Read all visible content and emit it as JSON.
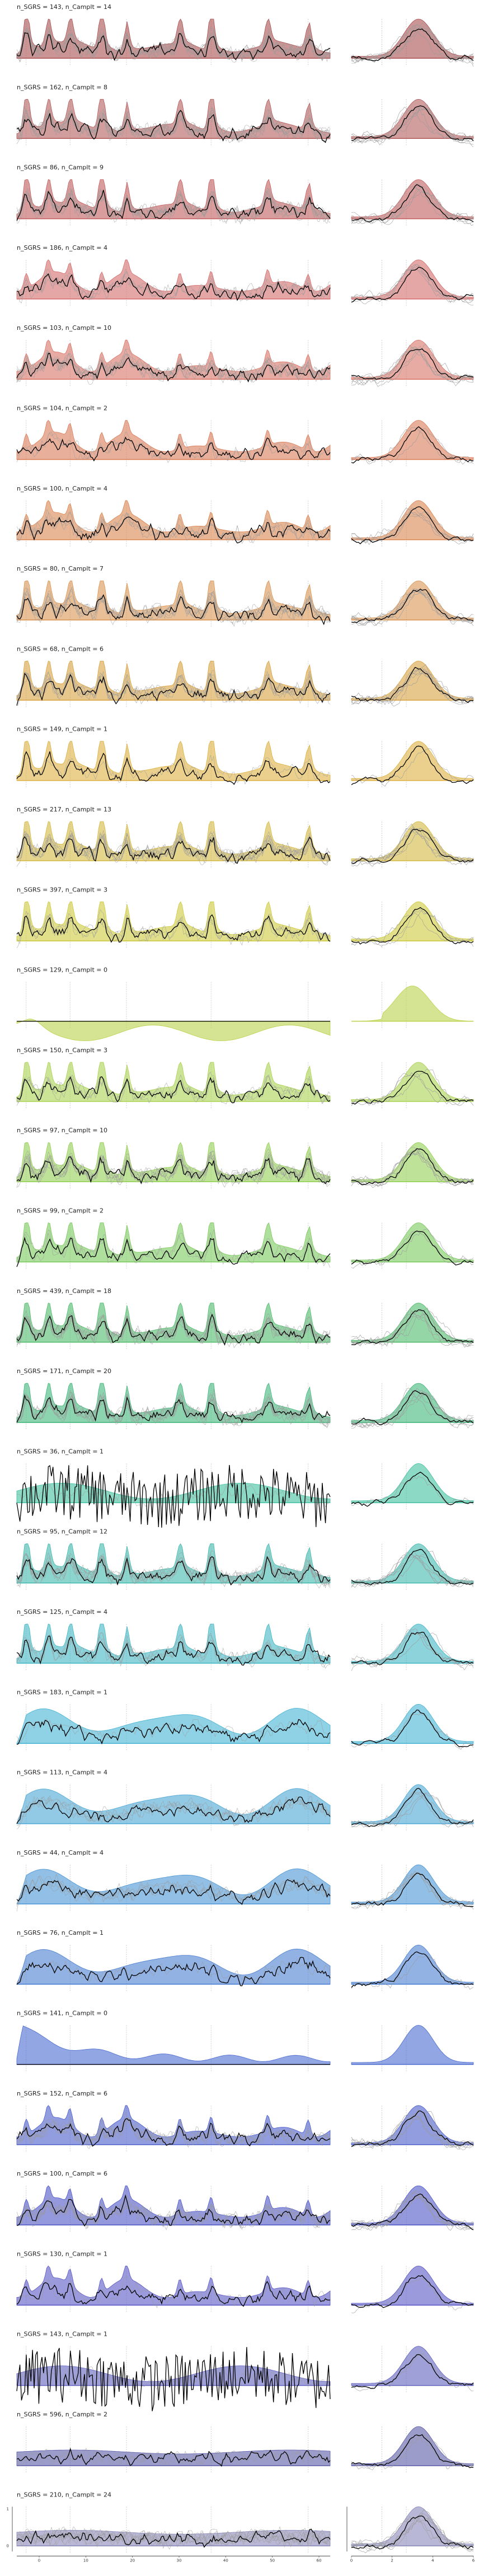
{
  "chart_data": {
    "type": "line",
    "title": "",
    "xlabel": "",
    "ylabel": "",
    "x_ticks_main": [
      "0",
      "10",
      "20",
      "30",
      "40",
      "50",
      "60"
    ],
    "x_ticks_right": [
      "0",
      "2",
      "4",
      "6"
    ],
    "y_ticks": [
      "1",
      "0"
    ],
    "panels": [
      {
        "label": "n_SGRS = 143, n_Camplt = 14",
        "n_sgrs": 143,
        "n_camplt": 14,
        "color": "#a94f4f",
        "profile": "peaks"
      },
      {
        "label": "n_SGRS = 162, n_Camplt = 8",
        "n_sgrs": 162,
        "n_camplt": 8,
        "color": "#b45b5b",
        "profile": "peaks"
      },
      {
        "label": "n_SGRS = 86, n_Camplt = 9",
        "n_sgrs": 86,
        "n_camplt": 9,
        "color": "#c25b5b",
        "profile": "peaks"
      },
      {
        "label": "n_SGRS = 186, n_Camplt = 4",
        "n_sgrs": 186,
        "n_camplt": 4,
        "color": "#d36b6b",
        "profile": "humps"
      },
      {
        "label": "n_SGRS = 103, n_Camplt = 10",
        "n_sgrs": 103,
        "n_camplt": 10,
        "color": "#d87366",
        "profile": "humps"
      },
      {
        "label": "n_SGRS = 104, n_Camplt = 2",
        "n_sgrs": 104,
        "n_camplt": 2,
        "color": "#d97a56",
        "profile": "humps"
      },
      {
        "label": "n_SGRS = 100, n_Camplt = 4",
        "n_sgrs": 100,
        "n_camplt": 4,
        "color": "#d9834f",
        "profile": "humps"
      },
      {
        "label": "n_SGRS = 80, n_Camplt = 7",
        "n_sgrs": 80,
        "n_camplt": 7,
        "color": "#d99452",
        "profile": "peaks"
      },
      {
        "label": "n_SGRS = 68, n_Camplt = 6",
        "n_sgrs": 68,
        "n_camplt": 6,
        "color": "#d9a240",
        "profile": "peaks"
      },
      {
        "label": "n_SGRS = 149, n_Camplt = 1",
        "n_sgrs": 149,
        "n_camplt": 1,
        "color": "#dcb040",
        "profile": "peaks"
      },
      {
        "label": "n_SGRS = 217, n_Camplt = 13",
        "n_sgrs": 217,
        "n_camplt": 13,
        "color": "#d4b840",
        "profile": "peaks"
      },
      {
        "label": "n_SGRS = 397, n_Camplt = 3",
        "n_sgrs": 397,
        "n_camplt": 3,
        "color": "#cdc93c",
        "profile": "peaks"
      },
      {
        "label": "n_SGRS = 129, n_Camplt = 0",
        "n_sgrs": 129,
        "n_camplt": 0,
        "color": "#b9d24a",
        "profile": "dip"
      },
      {
        "label": "n_SGRS = 150, n_Camplt = 3",
        "n_sgrs": 150,
        "n_camplt": 3,
        "color": "#a9d24f",
        "profile": "peaks"
      },
      {
        "label": "n_SGRS = 97, n_Camplt = 10",
        "n_sgrs": 97,
        "n_camplt": 10,
        "color": "#92cf52",
        "profile": "peaks"
      },
      {
        "label": "n_SGRS = 99, n_Camplt = 2",
        "n_sgrs": 99,
        "n_camplt": 2,
        "color": "#78c95a",
        "profile": "peaks"
      },
      {
        "label": "n_SGRS = 439, n_Camplt = 18",
        "n_sgrs": 439,
        "n_camplt": 18,
        "color": "#4fba6a",
        "profile": "peaks"
      },
      {
        "label": "n_SGRS = 171, n_Camplt = 20",
        "n_sgrs": 171,
        "n_camplt": 20,
        "color": "#3fb57a",
        "profile": "peaks"
      },
      {
        "label": "n_SGRS = 36, n_Camplt = 1",
        "n_sgrs": 36,
        "n_camplt": 1,
        "color": "#3fc0a0",
        "profile": "noise"
      },
      {
        "label": "n_SGRS = 95, n_Camplt = 12",
        "n_sgrs": 95,
        "n_camplt": 12,
        "color": "#3fb8ad",
        "profile": "peaks"
      },
      {
        "label": "n_SGRS = 125, n_Camplt = 4",
        "n_sgrs": 125,
        "n_camplt": 4,
        "color": "#3fb6c3",
        "profile": "peaks"
      },
      {
        "label": "n_SGRS = 183, n_Camplt = 1",
        "n_sgrs": 183,
        "n_camplt": 1,
        "color": "#45b3d4",
        "profile": "plateau"
      },
      {
        "label": "n_SGRS = 113, n_Camplt = 4",
        "n_sgrs": 113,
        "n_camplt": 4,
        "color": "#4aa6d6",
        "profile": "plateau"
      },
      {
        "label": "n_SGRS = 44, n_Camplt = 4",
        "n_sgrs": 44,
        "n_camplt": 4,
        "color": "#4a94d4",
        "profile": "plateau"
      },
      {
        "label": "n_SGRS = 76, n_Camplt = 1",
        "n_sgrs": 76,
        "n_camplt": 1,
        "color": "#4a7ed0",
        "profile": "plateau"
      },
      {
        "label": "n_SGRS = 141, n_Camplt = 0",
        "n_sgrs": 141,
        "n_camplt": 0,
        "color": "#4a6ad0",
        "profile": "decay"
      },
      {
        "label": "n_SGRS = 152, n_Camplt = 6",
        "n_sgrs": 152,
        "n_camplt": 6,
        "color": "#4a5ccc",
        "profile": "humps"
      },
      {
        "label": "n_SGRS = 100, n_Camplt = 6",
        "n_sgrs": 100,
        "n_camplt": 6,
        "color": "#4c54c6",
        "profile": "humps"
      },
      {
        "label": "n_SGRS = 130, n_Camplt = 1",
        "n_sgrs": 130,
        "n_camplt": 1,
        "color": "#5856c4",
        "profile": "humps"
      },
      {
        "label": "n_SGRS = 143, n_Camplt = 1",
        "n_sgrs": 143,
        "n_camplt": 1,
        "color": "#6060c0",
        "profile": "noise"
      },
      {
        "label": "n_SGRS = 596, n_Camplt = 2",
        "n_sgrs": 596,
        "n_camplt": 2,
        "color": "#5a5aa8",
        "profile": "flat"
      },
      {
        "label": "n_SGRS = 210, n_Camplt = 24",
        "n_sgrs": 210,
        "n_camplt": 24,
        "color": "#8888bb",
        "profile": "flat"
      }
    ]
  }
}
